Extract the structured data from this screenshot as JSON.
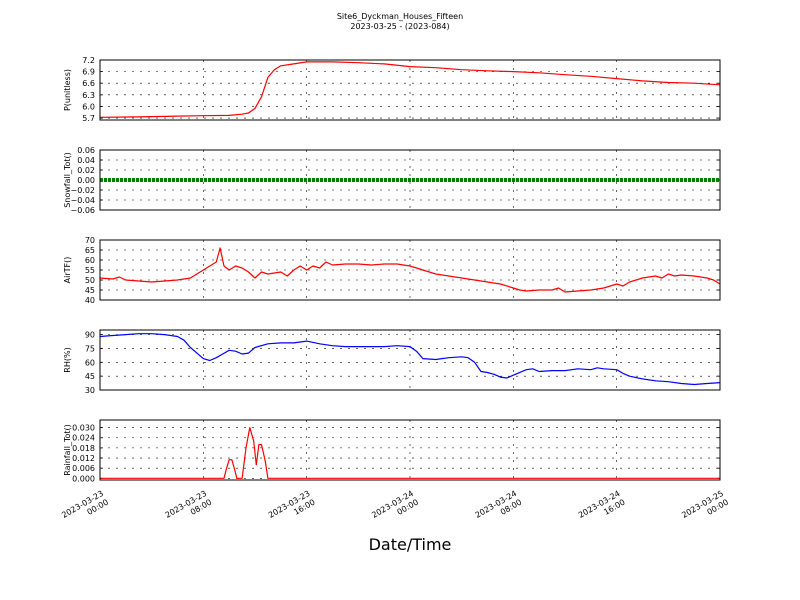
{
  "chart_data": {
    "type": "line",
    "title": "Site6_Dyckman_Houses_Fifteen",
    "subtitle": "2023-03-25 - (2023-084)",
    "xlabel": "Date/Time",
    "x_ticks": [
      "2023-03-23\n00:00",
      "2023-03-23\n08:00",
      "2023-03-23\n16:00",
      "2023-03-24\n00:00",
      "2023-03-24\n08:00",
      "2023-03-24\n16:00",
      "2023-03-25\n00:00"
    ],
    "x_range_hours": [
      0,
      48
    ],
    "grid": true,
    "panels": [
      {
        "ylabel": "P(unitless)",
        "color": "#ff0000",
        "ylim": [
          5.65,
          7.2
        ],
        "yticks": [
          "5.7",
          "6.0",
          "6.3",
          "6.6",
          "6.9",
          "7.2"
        ],
        "ytick_values": [
          5.7,
          6.0,
          6.3,
          6.6,
          6.9,
          7.2
        ],
        "style": "line",
        "series": [
          [
            0,
            5.72
          ],
          [
            3,
            5.73
          ],
          [
            6,
            5.75
          ],
          [
            8,
            5.76
          ],
          [
            10,
            5.77
          ],
          [
            11,
            5.8
          ],
          [
            11.5,
            5.83
          ],
          [
            12,
            5.95
          ],
          [
            12.5,
            6.25
          ],
          [
            13,
            6.75
          ],
          [
            13.5,
            6.95
          ],
          [
            14,
            7.05
          ],
          [
            15,
            7.1
          ],
          [
            16,
            7.15
          ],
          [
            18,
            7.15
          ],
          [
            20,
            7.13
          ],
          [
            22,
            7.1
          ],
          [
            24,
            7.03
          ],
          [
            26,
            7.0
          ],
          [
            28,
            6.95
          ],
          [
            30,
            6.92
          ],
          [
            32,
            6.9
          ],
          [
            34,
            6.87
          ],
          [
            36,
            6.82
          ],
          [
            38,
            6.78
          ],
          [
            40,
            6.72
          ],
          [
            42,
            6.66
          ],
          [
            44,
            6.62
          ],
          [
            46,
            6.6
          ],
          [
            48,
            6.56
          ]
        ]
      },
      {
        "ylabel": "Snowfall_Tot()",
        "color": "#008000",
        "ylim": [
          -0.06,
          0.06
        ],
        "yticks": [
          "−0.06",
          "−0.04",
          "−0.02",
          "0.00",
          "0.02",
          "0.04",
          "0.06"
        ],
        "ytick_values": [
          -0.06,
          -0.04,
          -0.02,
          0.0,
          0.02,
          0.04,
          0.06
        ],
        "style": "thick",
        "series": [
          [
            0,
            0
          ],
          [
            48,
            0
          ]
        ]
      },
      {
        "ylabel": "AirTF()",
        "color": "#ff0000",
        "ylim": [
          40,
          70
        ],
        "yticks": [
          "40",
          "45",
          "50",
          "55",
          "60",
          "65",
          "70"
        ],
        "ytick_values": [
          40,
          45,
          50,
          55,
          60,
          65,
          70
        ],
        "style": "line",
        "series": [
          [
            0,
            51
          ],
          [
            1,
            50.5
          ],
          [
            1.5,
            51.5
          ],
          [
            2,
            50
          ],
          [
            3,
            49.5
          ],
          [
            4,
            49
          ],
          [
            5,
            49.5
          ],
          [
            6,
            50
          ],
          [
            7,
            51
          ],
          [
            7.5,
            53
          ],
          [
            8,
            55
          ],
          [
            8.5,
            57
          ],
          [
            9,
            59
          ],
          [
            9.3,
            66
          ],
          [
            9.6,
            57
          ],
          [
            10,
            55
          ],
          [
            10.5,
            57
          ],
          [
            11,
            56
          ],
          [
            11.5,
            54
          ],
          [
            12,
            51
          ],
          [
            12.5,
            54
          ],
          [
            13,
            53
          ],
          [
            13.5,
            53.5
          ],
          [
            14,
            54
          ],
          [
            14.5,
            52
          ],
          [
            15,
            55
          ],
          [
            15.5,
            57
          ],
          [
            16,
            55
          ],
          [
            16.5,
            57
          ],
          [
            17,
            56
          ],
          [
            17.5,
            59
          ],
          [
            18,
            57.5
          ],
          [
            19,
            58
          ],
          [
            20,
            58
          ],
          [
            21,
            57.5
          ],
          [
            22,
            58
          ],
          [
            23,
            58
          ],
          [
            24,
            57
          ],
          [
            25,
            55
          ],
          [
            26,
            53
          ],
          [
            27,
            52
          ],
          [
            28,
            51
          ],
          [
            29,
            50
          ],
          [
            30,
            49
          ],
          [
            31,
            48
          ],
          [
            32,
            46
          ],
          [
            32.5,
            45
          ],
          [
            33,
            44.5
          ],
          [
            34,
            45
          ],
          [
            35,
            45
          ],
          [
            35.5,
            46
          ],
          [
            36,
            44
          ],
          [
            37,
            44.5
          ],
          [
            38,
            45
          ],
          [
            39,
            46
          ],
          [
            40,
            48
          ],
          [
            40.5,
            47
          ],
          [
            41,
            49
          ],
          [
            42,
            51
          ],
          [
            43,
            52
          ],
          [
            43.5,
            51
          ],
          [
            44,
            53
          ],
          [
            44.5,
            52
          ],
          [
            45,
            52.5
          ],
          [
            46,
            52
          ],
          [
            47,
            51
          ],
          [
            47.5,
            50
          ],
          [
            48,
            48
          ]
        ]
      },
      {
        "ylabel": "RH(%)",
        "color": "#0000ff",
        "ylim": [
          30,
          95
        ],
        "yticks": [
          "30",
          "45",
          "60",
          "75",
          "90"
        ],
        "ytick_values": [
          30,
          45,
          60,
          75,
          90
        ],
        "style": "line",
        "series": [
          [
            0,
            88
          ],
          [
            1,
            89
          ],
          [
            2,
            90
          ],
          [
            3,
            91
          ],
          [
            4,
            91
          ],
          [
            5,
            90
          ],
          [
            6,
            88
          ],
          [
            6.5,
            84
          ],
          [
            7,
            76
          ],
          [
            7.5,
            70
          ],
          [
            8,
            64
          ],
          [
            8.5,
            62
          ],
          [
            9,
            65
          ],
          [
            9.5,
            69
          ],
          [
            10,
            73
          ],
          [
            10.5,
            72
          ],
          [
            11,
            69
          ],
          [
            11.5,
            70
          ],
          [
            12,
            76
          ],
          [
            13,
            80
          ],
          [
            14,
            81
          ],
          [
            15,
            81
          ],
          [
            16,
            83
          ],
          [
            17,
            80
          ],
          [
            18,
            78
          ],
          [
            19,
            77
          ],
          [
            20,
            77
          ],
          [
            21,
            77
          ],
          [
            22,
            77
          ],
          [
            23,
            78
          ],
          [
            24,
            77
          ],
          [
            24.5,
            72
          ],
          [
            25,
            64
          ],
          [
            26,
            63
          ],
          [
            27,
            65
          ],
          [
            28,
            66
          ],
          [
            28.5,
            65
          ],
          [
            29,
            60
          ],
          [
            29.5,
            50
          ],
          [
            30,
            49
          ],
          [
            30.5,
            47
          ],
          [
            31,
            44
          ],
          [
            31.5,
            43
          ],
          [
            32,
            46
          ],
          [
            33,
            52
          ],
          [
            33.5,
            53
          ],
          [
            34,
            50
          ],
          [
            35,
            51
          ],
          [
            36,
            51
          ],
          [
            37,
            53
          ],
          [
            38,
            52
          ],
          [
            38.5,
            54
          ],
          [
            39,
            53
          ],
          [
            40,
            52
          ],
          [
            40.5,
            48
          ],
          [
            41,
            45
          ],
          [
            42,
            42
          ],
          [
            43,
            40
          ],
          [
            44,
            39
          ],
          [
            45,
            37
          ],
          [
            46,
            36
          ],
          [
            47,
            37
          ],
          [
            48,
            38
          ]
        ]
      },
      {
        "ylabel": "Rainfall_Tot()",
        "color": "#ff0000",
        "ylim": [
          -0.001,
          0.0345
        ],
        "yticks": [
          "0.000",
          "0.006",
          "0.012",
          "0.018",
          "0.024",
          "0.030"
        ],
        "ytick_values": [
          0,
          0.006,
          0.012,
          0.018,
          0.024,
          0.03
        ],
        "style": "line",
        "series": [
          [
            0,
            0
          ],
          [
            9.6,
            0
          ],
          [
            9.8,
            0.006
          ],
          [
            10.0,
            0.011
          ],
          [
            10.2,
            0.011
          ],
          [
            10.4,
            0.006
          ],
          [
            10.6,
            0
          ],
          [
            11.0,
            0
          ],
          [
            11.3,
            0.018
          ],
          [
            11.6,
            0.03
          ],
          [
            11.9,
            0.022
          ],
          [
            12.1,
            0.008
          ],
          [
            12.3,
            0.02
          ],
          [
            12.5,
            0.02
          ],
          [
            12.8,
            0.01
          ],
          [
            13.0,
            0
          ],
          [
            48,
            0
          ]
        ]
      }
    ]
  }
}
